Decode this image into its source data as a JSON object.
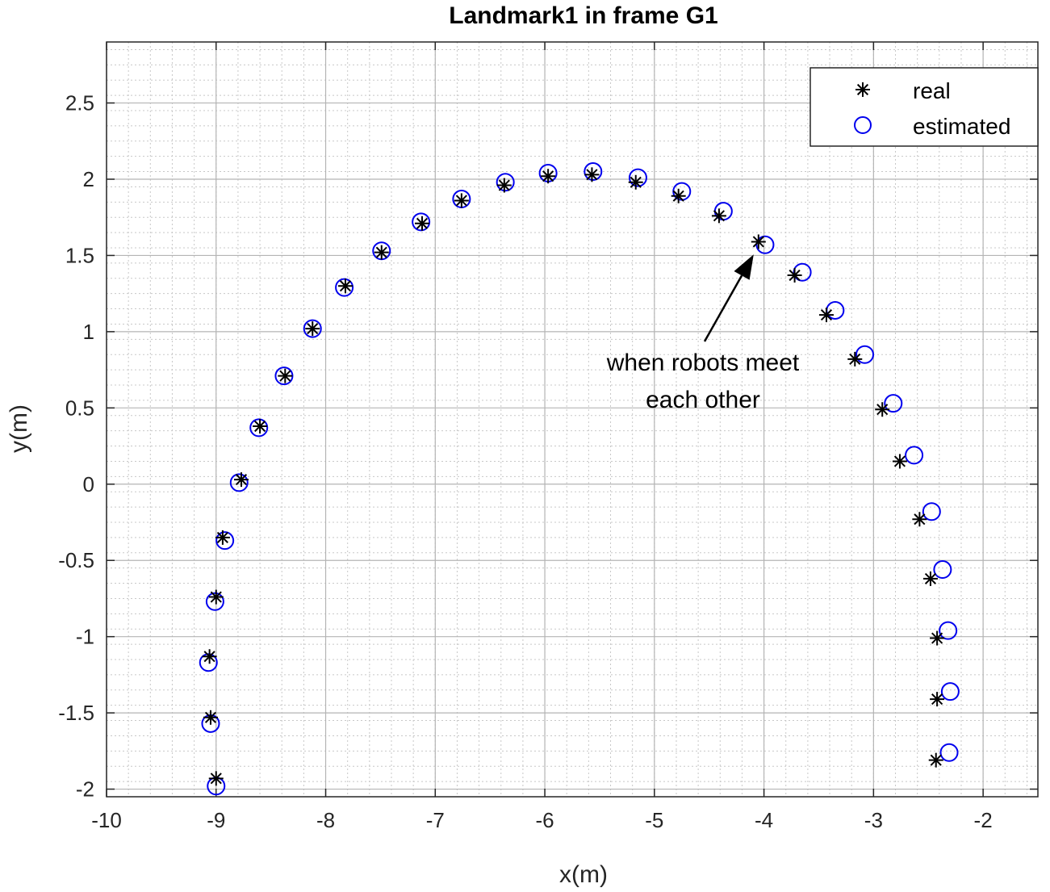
{
  "chart_data": {
    "type": "scatter",
    "title": "Landmark1 in frame G1",
    "xlabel": "x(m)",
    "ylabel": "y(m)",
    "xlim": [
      -10,
      -1.5
    ],
    "ylim": [
      -2.05,
      2.9
    ],
    "xticks": [
      -10,
      -9,
      -8,
      -7,
      -6,
      -5,
      -4,
      -3,
      -2
    ],
    "yticks": [
      -2,
      -1.5,
      -1,
      -0.5,
      0,
      0.5,
      1,
      1.5,
      2,
      2.5
    ],
    "xtick_labels": [
      "-10",
      "-9",
      "-8",
      "-7",
      "-6",
      "-5",
      "-4",
      "-3",
      "-2"
    ],
    "ytick_labels": [
      "-2",
      "-1.5",
      "-1",
      "-0.5",
      "0",
      "0.5",
      "1",
      "1.5",
      "2",
      "2.5"
    ],
    "grid": true,
    "minor_grid": true,
    "legend_position": "top-right",
    "series": [
      {
        "name": "real",
        "marker": "asterisk",
        "color": "#000000",
        "x": [
          -9.0,
          -9.05,
          -9.06,
          -9.0,
          -8.94,
          -8.77,
          -8.6,
          -8.37,
          -8.12,
          -7.82,
          -7.49,
          -7.12,
          -6.76,
          -6.37,
          -5.97,
          -5.57,
          -5.17,
          -4.78,
          -4.41,
          -4.05,
          -3.72,
          -3.43,
          -3.17,
          -2.92,
          -2.76,
          -2.58,
          -2.48,
          -2.42,
          -2.42,
          -2.43
        ],
        "y": [
          -1.93,
          -1.53,
          -1.13,
          -0.74,
          -0.35,
          0.03,
          0.38,
          0.71,
          1.02,
          1.3,
          1.52,
          1.71,
          1.86,
          1.96,
          2.02,
          2.03,
          1.98,
          1.89,
          1.76,
          1.59,
          1.37,
          1.11,
          0.82,
          0.49,
          0.15,
          -0.23,
          -0.62,
          -1.01,
          -1.41,
          -1.81
        ]
      },
      {
        "name": "estimated",
        "marker": "circle",
        "color": "#0000ee",
        "x": [
          -9.0,
          -9.05,
          -9.07,
          -9.01,
          -8.92,
          -8.79,
          -8.61,
          -8.38,
          -8.12,
          -7.83,
          -7.49,
          -7.13,
          -6.76,
          -6.36,
          -5.97,
          -5.56,
          -5.15,
          -4.75,
          -4.37,
          -3.99,
          -3.65,
          -3.35,
          -3.08,
          -2.82,
          -2.63,
          -2.47,
          -2.37,
          -2.32,
          -2.3,
          -2.31
        ],
        "y": [
          -1.98,
          -1.57,
          -1.17,
          -0.77,
          -0.37,
          0.01,
          0.37,
          0.71,
          1.02,
          1.29,
          1.53,
          1.72,
          1.87,
          1.98,
          2.04,
          2.05,
          2.01,
          1.92,
          1.79,
          1.57,
          1.39,
          1.14,
          0.85,
          0.53,
          0.19,
          -0.18,
          -0.56,
          -0.96,
          -1.36,
          -1.76
        ]
      }
    ],
    "annotations": [
      {
        "text_lines": [
          "when robots meet",
          "each other"
        ],
        "arrow_to": [
          -4.05,
          1.57
        ]
      }
    ]
  }
}
